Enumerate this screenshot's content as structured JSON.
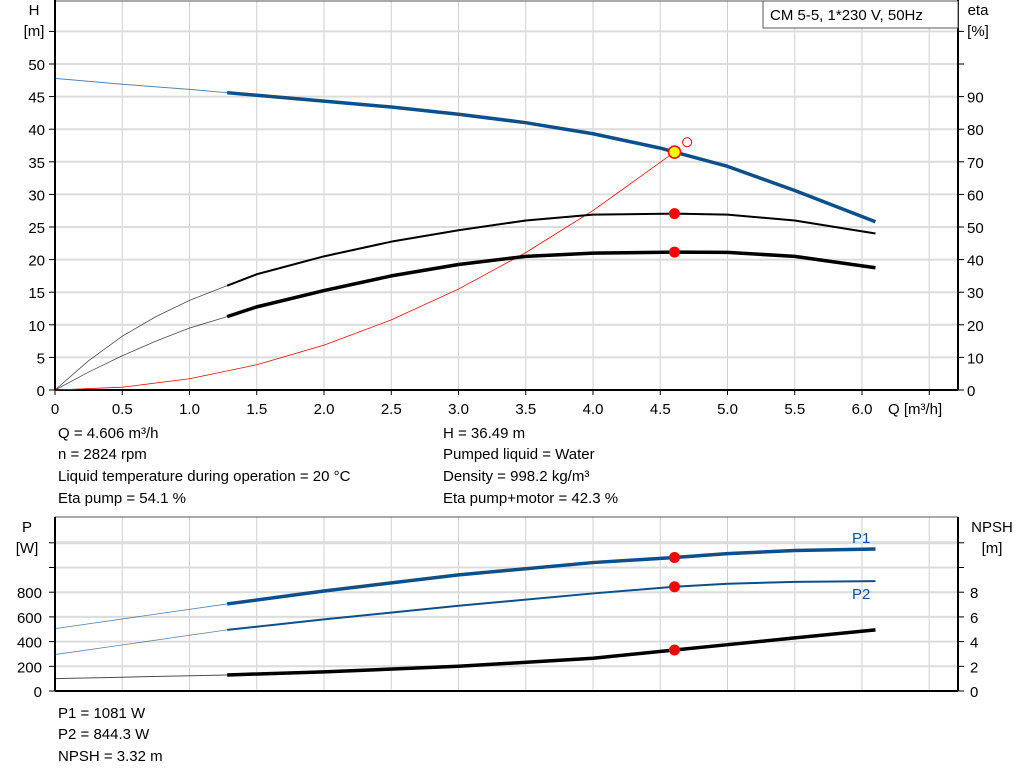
{
  "chart_data": [
    {
      "type": "line",
      "title": "CM 5-5, 1*230 V, 50Hz",
      "xlabel": "Q [m³/h]",
      "ylabel_left": [
        "H",
        "[m]"
      ],
      "ylabel_right": [
        "eta",
        "[%]"
      ],
      "xlim": [
        0,
        6.7
      ],
      "ylim_left": [
        0,
        60
      ],
      "ylim_right": [
        0,
        120
      ],
      "x_ticks": [
        "0",
        "0.5",
        "1.0",
        "1.5",
        "2.0",
        "2.5",
        "3.0",
        "3.5",
        "4.0",
        "4.5",
        "5.0",
        "5.5",
        "6.0"
      ],
      "y_ticks_left": [
        "0",
        "5",
        "10",
        "15",
        "20",
        "25",
        "30",
        "35",
        "40",
        "45",
        "50"
      ],
      "y_ticks_right": [
        "0",
        "10",
        "20",
        "30",
        "40",
        "50",
        "60",
        "70",
        "80",
        "90"
      ],
      "grid": true,
      "operating_range_start_q": 1.28,
      "series": [
        {
          "id": "head",
          "axis": "left",
          "color": "#0d4f8b",
          "points": [
            [
              0,
              47.8
            ],
            [
              0.5,
              46.9
            ],
            [
              1.0,
              46.1
            ],
            [
              1.28,
              45.6
            ],
            [
              1.5,
              45.2
            ],
            [
              2.0,
              44.3
            ],
            [
              2.5,
              43.4
            ],
            [
              3.0,
              42.3
            ],
            [
              3.5,
              41.0
            ],
            [
              4.0,
              39.3
            ],
            [
              4.5,
              37.1
            ],
            [
              4.606,
              36.49
            ],
            [
              5.0,
              34.3
            ],
            [
              5.5,
              30.6
            ],
            [
              6.1,
              25.8
            ]
          ]
        },
        {
          "id": "eta-pump",
          "axis": "right",
          "color": "#000000",
          "points": [
            [
              0,
              0
            ],
            [
              0.25,
              9
            ],
            [
              0.5,
              16.5
            ],
            [
              0.75,
              22.5
            ],
            [
              1.0,
              27.5
            ],
            [
              1.28,
              32
            ],
            [
              1.5,
              35.5
            ],
            [
              2.0,
              41
            ],
            [
              2.5,
              45.5
            ],
            [
              3.0,
              49
            ],
            [
              3.5,
              52
            ],
            [
              4.0,
              53.8
            ],
            [
              4.606,
              54.1
            ],
            [
              5.0,
              53.8
            ],
            [
              5.5,
              52
            ],
            [
              6.1,
              48
            ]
          ]
        },
        {
          "id": "eta-pump-motor",
          "axis": "right",
          "color": "#000000",
          "points": [
            [
              0,
              0
            ],
            [
              0.25,
              5.5
            ],
            [
              0.5,
              10.5
            ],
            [
              0.75,
              15
            ],
            [
              1.0,
              19
            ],
            [
              1.28,
              22.5
            ],
            [
              1.5,
              25.5
            ],
            [
              2.0,
              30.5
            ],
            [
              2.5,
              35
            ],
            [
              3.0,
              38.5
            ],
            [
              3.5,
              41
            ],
            [
              4.0,
              42
            ],
            [
              4.606,
              42.3
            ],
            [
              5.0,
              42.2
            ],
            [
              5.5,
              41
            ],
            [
              6.1,
              37.5
            ]
          ]
        },
        {
          "id": "system-curve",
          "axis": "left",
          "color": "#ff0000",
          "points": [
            [
              0,
              0
            ],
            [
              0.5,
              0.43
            ],
            [
              1.0,
              1.72
            ],
            [
              1.5,
              3.87
            ],
            [
              2.0,
              6.88
            ],
            [
              2.5,
              10.75
            ],
            [
              3.0,
              15.48
            ],
            [
              3.5,
              21.07
            ],
            [
              4.0,
              27.52
            ],
            [
              4.606,
              36.49
            ]
          ]
        }
      ],
      "duty_point": {
        "q": 4.606,
        "h": 36.49,
        "eta_pump": 54.1,
        "eta_pump_motor": 42.3
      },
      "requested_point": {
        "q": 4.7,
        "h": 38
      }
    },
    {
      "type": "line",
      "xlim": [
        0,
        6.7
      ],
      "ylabel_left": [
        "P",
        "[W]"
      ],
      "ylabel_right": [
        "NPSH",
        "[m]"
      ],
      "ylim_left": [
        0,
        1400
      ],
      "ylim_right": [
        0,
        14
      ],
      "y_ticks_left": [
        "0",
        "200",
        "400",
        "600",
        "800"
      ],
      "y_ticks_right": [
        "0",
        "2",
        "4",
        "6",
        "8"
      ],
      "grid": true,
      "series": [
        {
          "id": "p1",
          "name": "P1",
          "axis": "left",
          "color": "#0d4f8b",
          "points": [
            [
              0,
              505
            ],
            [
              0.64,
              605
            ],
            [
              1.28,
              705
            ],
            [
              2.0,
              810
            ],
            [
              3.0,
              940
            ],
            [
              4.0,
              1040
            ],
            [
              4.606,
              1081
            ],
            [
              5.0,
              1112
            ],
            [
              5.5,
              1138
            ],
            [
              6.1,
              1150
            ]
          ]
        },
        {
          "id": "p2",
          "name": "P2",
          "axis": "left",
          "color": "#0d4f8b",
          "points": [
            [
              0,
              295
            ],
            [
              0.64,
              395
            ],
            [
              1.28,
              495
            ],
            [
              2.0,
              580
            ],
            [
              3.0,
              690
            ],
            [
              4.0,
              790
            ],
            [
              4.606,
              844.3
            ],
            [
              5.0,
              868
            ],
            [
              5.5,
              884
            ],
            [
              6.1,
              890
            ]
          ]
        },
        {
          "id": "npsh",
          "axis": "right",
          "color": "#000000",
          "points": [
            [
              0,
              1.0
            ],
            [
              0.64,
              1.15
            ],
            [
              1.28,
              1.3
            ],
            [
              2.0,
              1.55
            ],
            [
              3.0,
              2.0
            ],
            [
              4.0,
              2.65
            ],
            [
              4.606,
              3.32
            ],
            [
              5.0,
              3.75
            ],
            [
              5.5,
              4.3
            ],
            [
              6.1,
              4.95
            ]
          ]
        }
      ]
    }
  ],
  "info_top": {
    "q": "Q = 4.606 m³/h",
    "n": "n = 2824 rpm",
    "temp": "Liquid temperature during operation = 20 °C",
    "eta_pump": "Eta pump = 54.1 %",
    "h": "H = 36.49 m",
    "liquid": "Pumped liquid = Water",
    "density": "Density = 998.2 kg/m³",
    "eta_pm": "Eta pump+motor = 42.3 %"
  },
  "info_bottom": {
    "p1": "P1 = 1081 W",
    "p2": "P2 = 844.3 W",
    "npsh": "NPSH = 3.32 m"
  }
}
